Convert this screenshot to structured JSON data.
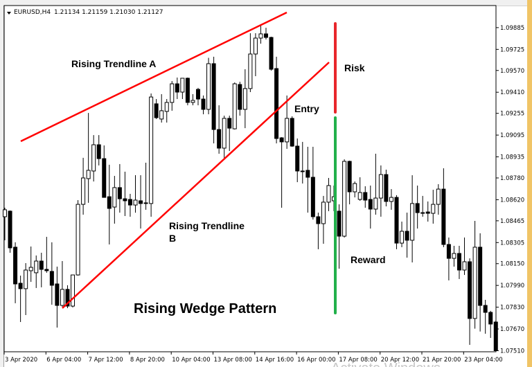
{
  "header": {
    "symbol": "EURUSD,H4",
    "ohlc": "1.21134 1.21159 1.21030 1.21127"
  },
  "annotations": {
    "trendline_a": "Rising Trendline A",
    "trendline_b_line1": "Rising Trendline",
    "trendline_b_line2": "B",
    "risk": "Risk",
    "entry": "Entry",
    "reward": "Reward",
    "pattern_title": "Rising Wedge Pattern"
  },
  "watermark": "Activate Windows",
  "colors": {
    "trendline": "#ff0000",
    "risk": "#e8262b",
    "reward": "#22b04b",
    "bull_body": "#ffffff",
    "bear_body": "#000000",
    "side_strip": "#f0c466"
  },
  "chart_data": {
    "type": "candlestick",
    "timeframe": "H4",
    "ylim": [
      1.0751,
      1.10088
    ],
    "grid": false,
    "y_ticks": [
      "1.09885",
      "1.09725",
      "1.09570",
      "1.09410",
      "1.09255",
      "1.09095",
      "1.08935",
      "1.08780",
      "1.08620",
      "1.08465",
      "1.08305",
      "1.08150",
      "1.07990",
      "1.07830",
      "1.07670",
      "1.07510"
    ],
    "x_ticks": [
      "3 Apr 2020",
      "6 Apr 04:00",
      "7 Apr 12:00",
      "8 Apr 20:00",
      "10 Apr 04:00",
      "13 Apr 08:00",
      "14 Apr 16:00",
      "16 Apr 00:00",
      "17 Apr 08:00",
      "20 Apr 12:00",
      "21 Apr 20:00",
      "23 Apr 04:00"
    ],
    "candles_ohlc": [
      [
        1.08495,
        1.08561,
        1.08322,
        1.08546
      ],
      [
        1.08536,
        1.08541,
        1.0823,
        1.08266
      ],
      [
        1.08271,
        1.08307,
        1.07859,
        1.08001
      ],
      [
        1.08006,
        1.08062,
        1.07721,
        1.07966
      ],
      [
        1.07966,
        1.08154,
        1.07772,
        1.08103
      ],
      [
        1.08098,
        1.08276,
        1.08016,
        1.08123
      ],
      [
        1.08083,
        1.0821,
        1.07971,
        1.08169
      ],
      [
        1.08169,
        1.0823,
        1.07976,
        1.08108
      ],
      [
        1.08108,
        1.08347,
        1.08083,
        1.08098
      ],
      [
        1.08093,
        1.08307,
        1.07848,
        1.07991
      ],
      [
        1.08001,
        1.08128,
        1.0768,
        1.07843
      ],
      [
        1.07843,
        1.08169,
        1.07833,
        1.07961
      ],
      [
        1.07961,
        1.07991,
        1.07823,
        1.07838
      ],
      [
        1.07838,
        1.08067,
        1.07828,
        1.08067
      ],
      [
        1.08067,
        1.08617,
        1.08062,
        1.08586
      ],
      [
        1.08586,
        1.08928,
        1.0851,
        1.0878
      ],
      [
        1.08775,
        1.09258,
        1.08597,
        1.08836
      ],
      [
        1.08831,
        1.09095,
        1.08754,
        1.09024
      ],
      [
        1.09024,
        1.09095,
        1.08872,
        1.08922
      ],
      [
        1.08922,
        1.09019,
        1.08637,
        1.08637
      ],
      [
        1.08642,
        1.08877,
        1.08291,
        1.08556
      ],
      [
        1.08566,
        1.08795,
        1.08444,
        1.08709
      ],
      [
        1.08709,
        1.08882,
        1.08525,
        1.08627
      ],
      [
        1.08627,
        1.08826,
        1.085,
        1.08612
      ],
      [
        1.08622,
        1.08663,
        1.08495,
        1.08581
      ],
      [
        1.08581,
        1.088,
        1.08525,
        1.08617
      ],
      [
        1.08612,
        1.088,
        1.08408,
        1.08592
      ],
      [
        1.08597,
        1.08892,
        1.08546,
        1.08596
      ],
      [
        1.08592,
        1.09401,
        1.08495,
        1.09375
      ],
      [
        1.09325,
        1.0936,
        1.09213,
        1.09223
      ],
      [
        1.09213,
        1.09396,
        1.09187,
        1.09274
      ],
      [
        1.09269,
        1.0936,
        1.09187,
        1.09335
      ],
      [
        1.09335,
        1.09492,
        1.09274,
        1.09472
      ],
      [
        1.09472,
        1.09518,
        1.0936,
        1.09411
      ],
      [
        1.09411,
        1.09513,
        1.0936,
        1.09513
      ],
      [
        1.09513,
        1.09518,
        1.09314,
        1.09335
      ],
      [
        1.09335,
        1.09396,
        1.09314,
        1.0935
      ],
      [
        1.09431,
        1.09442,
        1.09314,
        1.0936
      ],
      [
        1.0936,
        1.09386,
        1.09248,
        1.09284
      ],
      [
        1.09284,
        1.09663,
        1.09248,
        1.0962
      ],
      [
        1.0962,
        1.09671,
        1.09034,
        1.09136
      ],
      [
        1.09136,
        1.09314,
        1.08958,
        1.08999
      ],
      [
        1.08999,
        1.09238,
        1.08927,
        1.09218
      ],
      [
        1.09218,
        1.09238,
        1.08978,
        1.09146
      ],
      [
        1.09141,
        1.09482,
        1.09136,
        1.09472
      ],
      [
        1.09467,
        1.09487,
        1.09238,
        1.09284
      ],
      [
        1.09284,
        1.09579,
        1.09146,
        1.09437
      ],
      [
        1.09437,
        1.09844,
        1.09411,
        1.09691
      ],
      [
        1.09691,
        1.09844,
        1.09528,
        1.09808
      ],
      [
        1.09808,
        1.0991,
        1.09767,
        1.09839
      ],
      [
        1.09839,
        1.09884,
        1.09798,
        1.09813
      ],
      [
        1.09813,
        1.09818,
        1.09569,
        1.09579
      ],
      [
        1.09584,
        1.09671,
        1.09034,
        1.0907
      ],
      [
        1.09075,
        1.0908,
        1.08561,
        1.09045
      ],
      [
        1.09045,
        1.09386,
        1.08994,
        1.09218
      ],
      [
        1.09218,
        1.09233,
        1.09009,
        1.09014
      ],
      [
        1.09014,
        1.0907,
        1.08749,
        1.08831
      ],
      [
        1.08831,
        1.09045,
        1.08739,
        1.08829
      ],
      [
        1.08836,
        1.09009,
        1.08525,
        1.08785
      ],
      [
        1.08785,
        1.09009,
        1.08474,
        1.08495
      ],
      [
        1.08495,
        1.08525,
        1.08256,
        1.08444
      ],
      [
        1.08444,
        1.08648,
        1.08296,
        1.08602
      ],
      [
        1.08602,
        1.0878,
        1.08536,
        1.08724
      ],
      [
        1.08612,
        1.08724,
        1.08536,
        1.08642
      ],
      [
        1.08536,
        1.08586,
        1.08113,
        1.08352
      ],
      [
        1.08352,
        1.08917,
        1.08342,
        1.08902
      ],
      [
        1.08902,
        1.08907,
        1.08586,
        1.08678
      ],
      [
        1.08678,
        1.08754,
        1.08637,
        1.08739
      ],
      [
        1.08622,
        1.08785,
        1.08612,
        1.08673
      ],
      [
        1.08673,
        1.08719,
        1.08561,
        1.08617
      ],
      [
        1.08622,
        1.08724,
        1.08408,
        1.08551
      ],
      [
        1.08551,
        1.08958,
        1.0851,
        1.08632
      ],
      [
        1.08632,
        1.08872,
        1.08495,
        1.08805
      ],
      [
        1.08805,
        1.08841,
        1.08571,
        1.08607
      ],
      [
        1.08607,
        1.08698,
        1.08546,
        1.08637
      ],
      [
        1.08637,
        1.08653,
        1.08256,
        1.08301
      ],
      [
        1.08301,
        1.08459,
        1.08271,
        1.08388
      ],
      [
        1.08388,
        1.08525,
        1.08194,
        1.08322
      ],
      [
        1.08322,
        1.088,
        1.08159,
        1.08592
      ],
      [
        1.08592,
        1.08724,
        1.08408,
        1.08525
      ],
      [
        1.08525,
        1.08648,
        1.08495,
        1.08524
      ],
      [
        1.0853,
        1.08607,
        1.08459,
        1.0852
      ],
      [
        1.0852,
        1.08693,
        1.08444,
        1.08586
      ],
      [
        1.08586,
        1.08734,
        1.0851,
        1.08698
      ],
      [
        1.08698,
        1.08851,
        1.08271,
        1.08291
      ],
      [
        1.08291,
        1.08342,
        1.08027,
        1.08189
      ],
      [
        1.08189,
        1.08281,
        1.08128,
        1.08225
      ],
      [
        1.08225,
        1.08281,
        1.08037,
        1.08103
      ],
      [
        1.08103,
        1.08342,
        1.08067,
        1.08164
      ],
      [
        1.08164,
        1.08189,
        1.07553,
        1.07747
      ],
      [
        1.07747,
        1.08464,
        1.07672,
        1.08271
      ],
      [
        1.08271,
        1.08373,
        1.07651,
        1.07843
      ],
      [
        1.07843,
        1.07884,
        1.07635,
        1.07792
      ],
      [
        1.07792,
        1.07803,
        1.07604,
        1.07706
      ],
      [
        1.07721,
        1.07731,
        1.0751,
        1.0751
      ]
    ]
  }
}
